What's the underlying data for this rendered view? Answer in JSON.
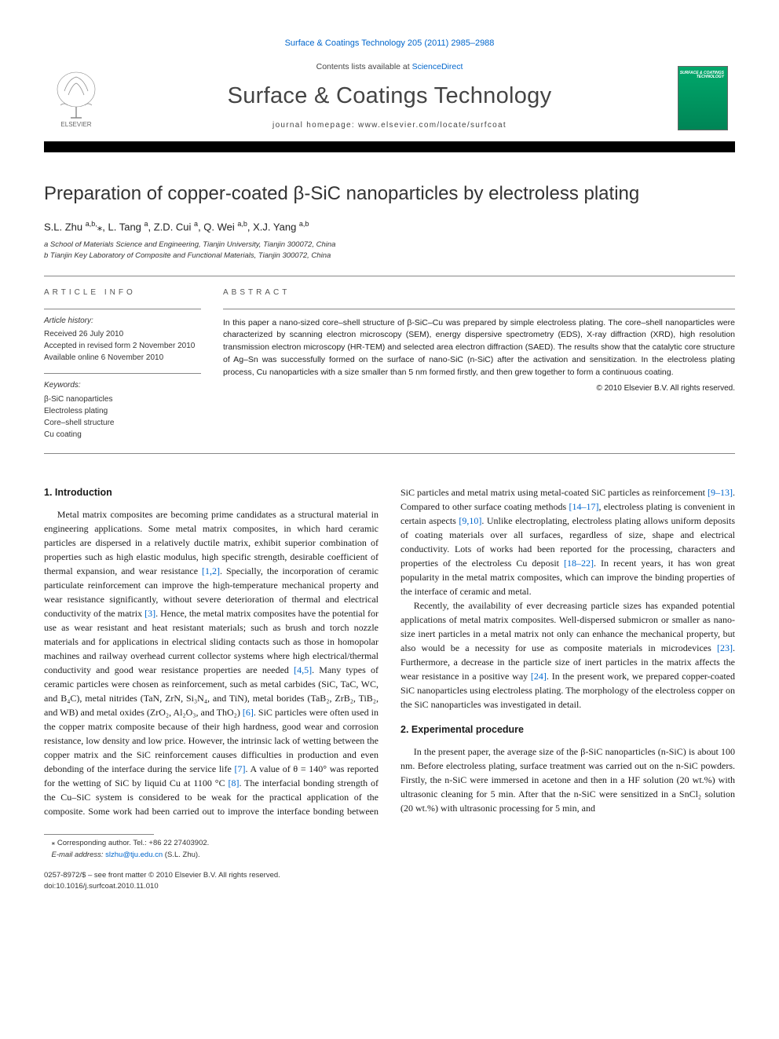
{
  "top_link": "Surface & Coatings Technology 205 (2011) 2985–2988",
  "header": {
    "contents_prefix": "Contents lists available at ",
    "contents_link": "ScienceDirect",
    "journal_title": "Surface & Coatings Technology",
    "homepage_label": "journal homepage: www.elsevier.com/locate/surfcoat",
    "cover_text": "SURFACE & COATINGS TECHNOLOGY"
  },
  "article": {
    "title": "Preparation of copper-coated β-SiC nanoparticles by electroless plating",
    "authors_html": "S.L. Zhu <sup>a,b,</sup><span class='star'>⁎</span>, L. Tang <sup>a</sup>, Z.D. Cui <sup>a</sup>, Q. Wei <sup>a,b</sup>, X.J. Yang <sup>a,b</sup>",
    "aff_a": "a  School of Materials Science and Engineering, Tianjin University, Tianjin 300072, China",
    "aff_b": "b  Tianjin Key Laboratory of Composite and Functional Materials, Tianjin 300072, China"
  },
  "meta": {
    "info_heading": "ARTICLE INFO",
    "history_heading": "Article history:",
    "history": "Received 26 July 2010\nAccepted in revised form 2 November 2010\nAvailable online 6 November 2010",
    "keywords_heading": "Keywords:",
    "keywords": "β-SiC nanoparticles\nElectroless plating\nCore–shell structure\nCu coating",
    "abstract_heading": "ABSTRACT",
    "abstract": "In this paper a nano-sized core–shell structure of β-SiC–Cu was prepared by simple electroless plating. The core–shell nanoparticles were characterized by scanning electron microscopy (SEM), energy dispersive spectrometry (EDS), X-ray diffraction (XRD), high resolution transmission electron microscopy (HR-TEM) and selected area electron diffraction (SAED). The results show that the catalytic core structure of Ag–Sn was successfully formed on the surface of nano-SiC (n-SiC) after the activation and sensitization. In the electroless plating process, Cu nanoparticles with a size smaller than 5 nm formed firstly, and then grew together to form a continuous coating.",
    "copyright": "© 2010 Elsevier B.V. All rights reserved."
  },
  "sections": {
    "intro_heading": "1. Introduction",
    "intro_p1a": "Metal matrix composites are becoming prime candidates as a structural material in engineering applications. Some metal matrix composites, in which hard ceramic particles are dispersed in a relatively ductile matrix, exhibit superior combination of properties such as high elastic modulus, high specific strength, desirable coefficient of thermal expansion, and wear resistance ",
    "c1": "[1,2]",
    "intro_p1b": ". Specially, the incorporation of ceramic particulate reinforcement can improve the high-temperature mechanical property and wear resistance significantly, without severe deterioration of thermal and electrical conductivity of the matrix ",
    "c2": "[3]",
    "intro_p1c": ". Hence, the metal matrix composites have the potential for use as wear resistant and heat resistant materials; such as brush and torch nozzle materials and for applications in electrical sliding contacts such as those in homopolar machines and railway overhead current collector systems where high electrical/thermal conductivity and good wear resistance properties are needed ",
    "c3": "[4,5]",
    "intro_p1d": ". Many types of ceramic particles were chosen as reinforcement, such as metal carbides (SiC, TaC, WC, and B₄C), metal nitrides (TaN, ZrN, Si₃N₄, and TiN), metal borides (TaB₂, ZrB₂, TiB₂, and WB) and metal oxides (ZrO₂, Al₂O₃, and ThO₂) ",
    "c4": "[6]",
    "intro_p1e": ". SiC particles were often used in the copper matrix composite because of their high hardness, good wear and corrosion resistance, low density and low price. However, the intrinsic lack of wetting between the copper matrix and the SiC reinforcement causes difficulties in production and even debonding of the interface during the service life ",
    "c5": "[7]",
    "intro_p1f": ". A value of θ = 140° was reported for the wetting of SiC by liquid Cu at 1100 °C ",
    "c6": "[8]",
    "intro_p1g": ". The interfacial bonding strength of the ",
    "intro_p1h": "Cu–SiC system is considered to be weak for the practical application of the composite. Some work had been carried out to improve the interface bonding between SiC particles and metal matrix using metal-coated SiC particles as reinforcement ",
    "c7": "[9–13]",
    "intro_p1i": ". Compared to other surface coating methods ",
    "c8": "[14–17]",
    "intro_p1j": ", electroless plating is convenient in certain aspects ",
    "c9": "[9,10]",
    "intro_p1k": ". Unlike electroplating, electroless plating allows uniform deposits of coating materials over all surfaces, regardless of size, shape and electrical conductivity. Lots of works had been reported for the processing, characters and properties of the electroless Cu deposit ",
    "c10": "[18–22]",
    "intro_p1l": ". In recent years, it has won great popularity in the metal matrix composites, which can improve the binding properties of the interface of ceramic and metal.",
    "intro_p2a": "Recently, the availability of ever decreasing particle sizes has expanded potential applications of metal matrix composites. Well-dispersed submicron or smaller as nano-size inert particles in a metal matrix not only can enhance the mechanical property, but also would be a necessity for use as composite materials in microdevices ",
    "c11": "[23]",
    "intro_p2b": ". Furthermore, a decrease in the particle size of inert particles in the matrix affects the wear resistance in a positive way ",
    "c12": "[24]",
    "intro_p2c": ". In the present work, we prepared copper-coated SiC nanoparticles using electroless plating. The morphology of the electroless copper on the SiC nanoparticles was investigated in detail.",
    "exp_heading": "2. Experimental procedure",
    "exp_p1": "In the present paper, the average size of the β-SiC nanoparticles (n-SiC) is about 100 nm. Before electroless plating, surface treatment was carried out on the n-SiC powders. Firstly, the n-SiC were immersed in acetone and then in a HF solution (20 wt.%) with ultrasonic cleaning for 5 min. After that the n-SiC were sensitized in a SnCl₂ solution (20 wt.%) with ultrasonic processing for 5 min, and"
  },
  "footer": {
    "corr": "⁎ Corresponding author. Tel.: +86 22 27403902.",
    "email_label": "E-mail address: ",
    "email": "slzhu@tju.edu.cn",
    "email_suffix": " (S.L. Zhu).",
    "issn_line": "0257-8972/$ – see front matter © 2010 Elsevier B.V. All rights reserved.",
    "doi_line": "doi:10.1016/j.surfcoat.2010.11.010"
  },
  "colors": {
    "link": "#0066cc",
    "text": "#1a1a1a",
    "bar": "#000000",
    "cover_top": "#00a86b",
    "cover_bottom": "#008556"
  }
}
